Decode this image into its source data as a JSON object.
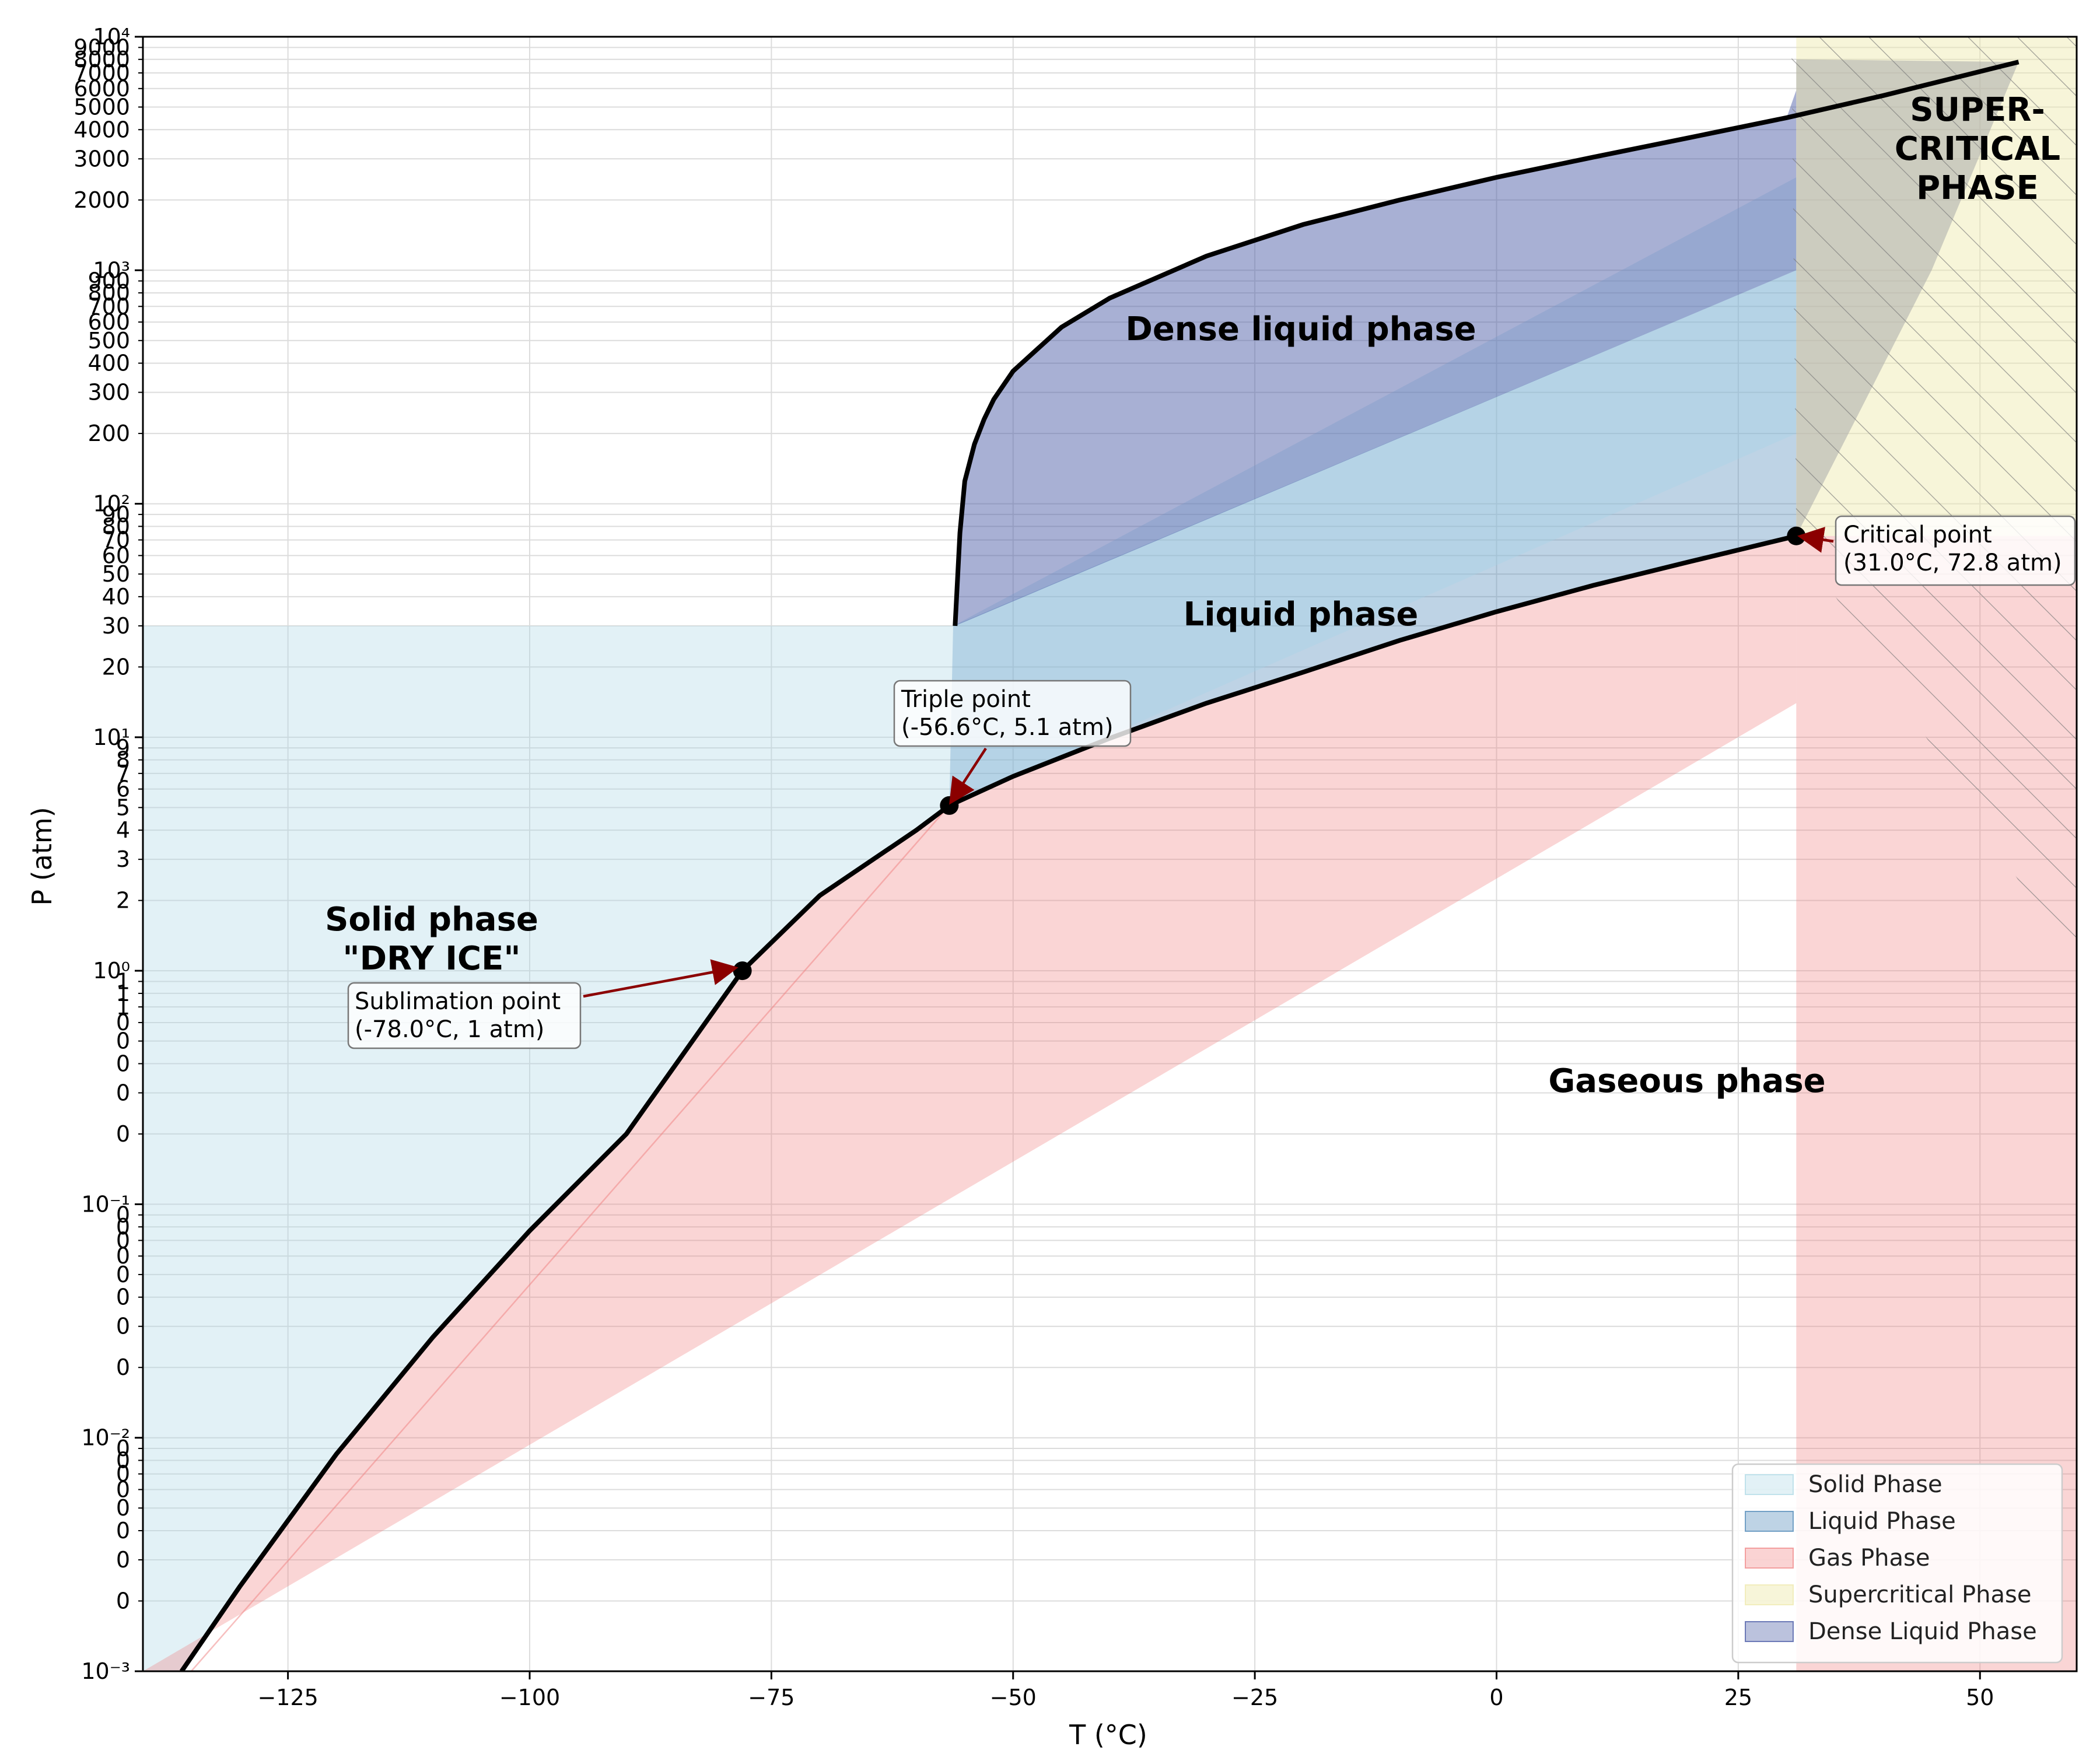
{
  "chart_data": {
    "type": "area",
    "title": "",
    "xlabel": "T (°C)",
    "ylabel": "P (atm)",
    "xlim": [
      -140,
      60
    ],
    "ylim": [
      0.001,
      10000
    ],
    "yscale": "log",
    "grid": true,
    "x_ticks": [
      -125,
      -100,
      -75,
      -50,
      -25,
      0,
      25,
      50
    ],
    "x_tick_labels": [
      "−125",
      "−100",
      "−75",
      "−50",
      "−25",
      "0",
      "25",
      "50"
    ],
    "y_major_ticks": [
      0.001,
      0.01,
      0.1,
      1,
      10,
      100,
      1000,
      10000
    ],
    "y_major_labels": [
      "10⁻³",
      "10⁻²",
      "10⁻¹",
      "10⁰",
      "10¹",
      "10²",
      "10³",
      "10⁴"
    ],
    "y_minor_ticks": [
      0.002,
      0.003,
      0.004,
      0.005,
      0.006,
      0.007,
      0.008,
      0.009,
      0.02,
      0.03,
      0.04,
      0.05,
      0.06,
      0.07,
      0.08,
      0.09,
      0.2,
      0.3,
      0.4,
      0.5,
      0.6,
      0.7,
      0.8,
      0.9,
      2,
      3,
      4,
      5,
      6,
      7,
      8,
      9,
      20,
      30,
      40,
      50,
      60,
      70,
      80,
      90,
      200,
      300,
      400,
      500,
      600,
      700,
      800,
      900,
      2000,
      3000,
      4000,
      5000,
      6000,
      7000,
      8000,
      9000
    ],
    "y_minor_labels": [
      "0",
      "0",
      "0",
      "0",
      "0",
      "0",
      "0",
      "0",
      "0",
      "0",
      "0",
      "0",
      "0",
      "0",
      "0",
      "0",
      "0",
      "0",
      "0",
      "0",
      "0",
      "1",
      "1",
      "1",
      "2",
      "3",
      "4",
      "5",
      "6",
      "7",
      "8",
      "9",
      "20",
      "30",
      "40",
      "50",
      "60",
      "70",
      "80",
      "90",
      "200",
      "300",
      "400",
      "500",
      "600",
      "700",
      "800",
      "900",
      "2000",
      "3000",
      "4000",
      "5000",
      "6000",
      "7000",
      "8000",
      "9000"
    ],
    "series": [
      {
        "name": "Solid Phase",
        "color": "#add8e6",
        "opacity": 0.35,
        "polygon": [
          [
            -140,
            0.001
          ],
          [
            -140,
            30
          ],
          [
            -56.6,
            30
          ],
          [
            -56.6,
            5.1
          ]
        ]
      },
      {
        "name": "Liquid Phase",
        "color": "#4682b4",
        "opacity": 0.35,
        "polygon": [
          [
            -56.6,
            5.1
          ],
          [
            31,
            72.8
          ],
          [
            31,
            1000
          ],
          [
            -56.6,
            30
          ]
        ]
      },
      {
        "name": "Gas Phase",
        "color": "#f08080",
        "opacity": 0.33,
        "polygon_upper": "sublimation_vaporization_curve",
        "polygon_lower": [
          [
            -140,
            0.001
          ],
          [
            31,
            14
          ]
        ],
        "extra_band": [
          [
            31,
            0.001
          ],
          [
            60,
            0.001
          ],
          [
            60,
            72.8
          ],
          [
            31,
            72.8
          ]
        ]
      },
      {
        "name": "Supercritical Phase",
        "color": "#eee8aa",
        "opacity": 0.45,
        "polygon": [
          [
            31,
            72.8
          ],
          [
            60,
            72.8
          ],
          [
            60,
            10000
          ],
          [
            31,
            10000
          ]
        ]
      },
      {
        "name": "Dense Liquid Phase",
        "color": "#3d4f9f",
        "opacity": 0.2,
        "polygon_note": "between melting curve and upper bound"
      }
    ],
    "curves": {
      "sublimation": {
        "x": [
          -136,
          -130,
          -120,
          -110,
          -100,
          -90,
          -78,
          -70,
          -60,
          -56.6
        ],
        "y": [
          0.001,
          0.0023,
          0.0085,
          0.027,
          0.077,
          0.2,
          1.0,
          2.1,
          4.0,
          5.1
        ]
      },
      "vaporization": {
        "x": [
          -56.6,
          -50,
          -40,
          -30,
          -20,
          -10,
          0,
          10,
          20,
          31
        ],
        "y": [
          5.1,
          6.8,
          9.9,
          14,
          19,
          26,
          34.5,
          44.7,
          56.5,
          72.8
        ]
      },
      "melting": {
        "x": [
          -56,
          -55.5,
          -55,
          -54,
          -53,
          -52,
          -50,
          -45,
          -40,
          -30,
          -20,
          -10,
          0,
          10,
          20,
          30,
          40,
          54
        ],
        "y": [
          30,
          75,
          125,
          180,
          230,
          280,
          370,
          570,
          760,
          1150,
          1570,
          2000,
          2500,
          3050,
          3700,
          4500,
          5600,
          7800
        ]
      }
    },
    "points": [
      {
        "name": "Sublimation point",
        "x": -78.0,
        "y": 1.0
      },
      {
        "name": "Triple point",
        "x": -56.6,
        "y": 5.1
      },
      {
        "name": "Critical point",
        "x": 31.0,
        "y": 72.8
      }
    ],
    "legend": {
      "placement": "lower right",
      "entries": [
        "Solid Phase",
        "Liquid Phase",
        "Gas Phase",
        "Supercritical Phase",
        "Dense Liquid Phase"
      ]
    }
  },
  "labels": {
    "solid_line1": "Solid phase",
    "solid_line2": "\"DRY ICE\"",
    "liquid": "Liquid phase",
    "dense": "Dense liquid phase",
    "gaseous": "Gaseous phase",
    "super1": "SUPER-",
    "super2": "CRITICAL",
    "super3": "PHASE"
  },
  "annotations": {
    "triple_line1": "Triple point",
    "triple_line2": "(-56.6°C, 5.1 atm)",
    "critical_line1": "Critical point",
    "critical_line2": "(31.0°C, 72.8 atm)",
    "sublimation_line1": "Sublimation point",
    "sublimation_line2": "(-78.0°C, 1 atm)"
  }
}
